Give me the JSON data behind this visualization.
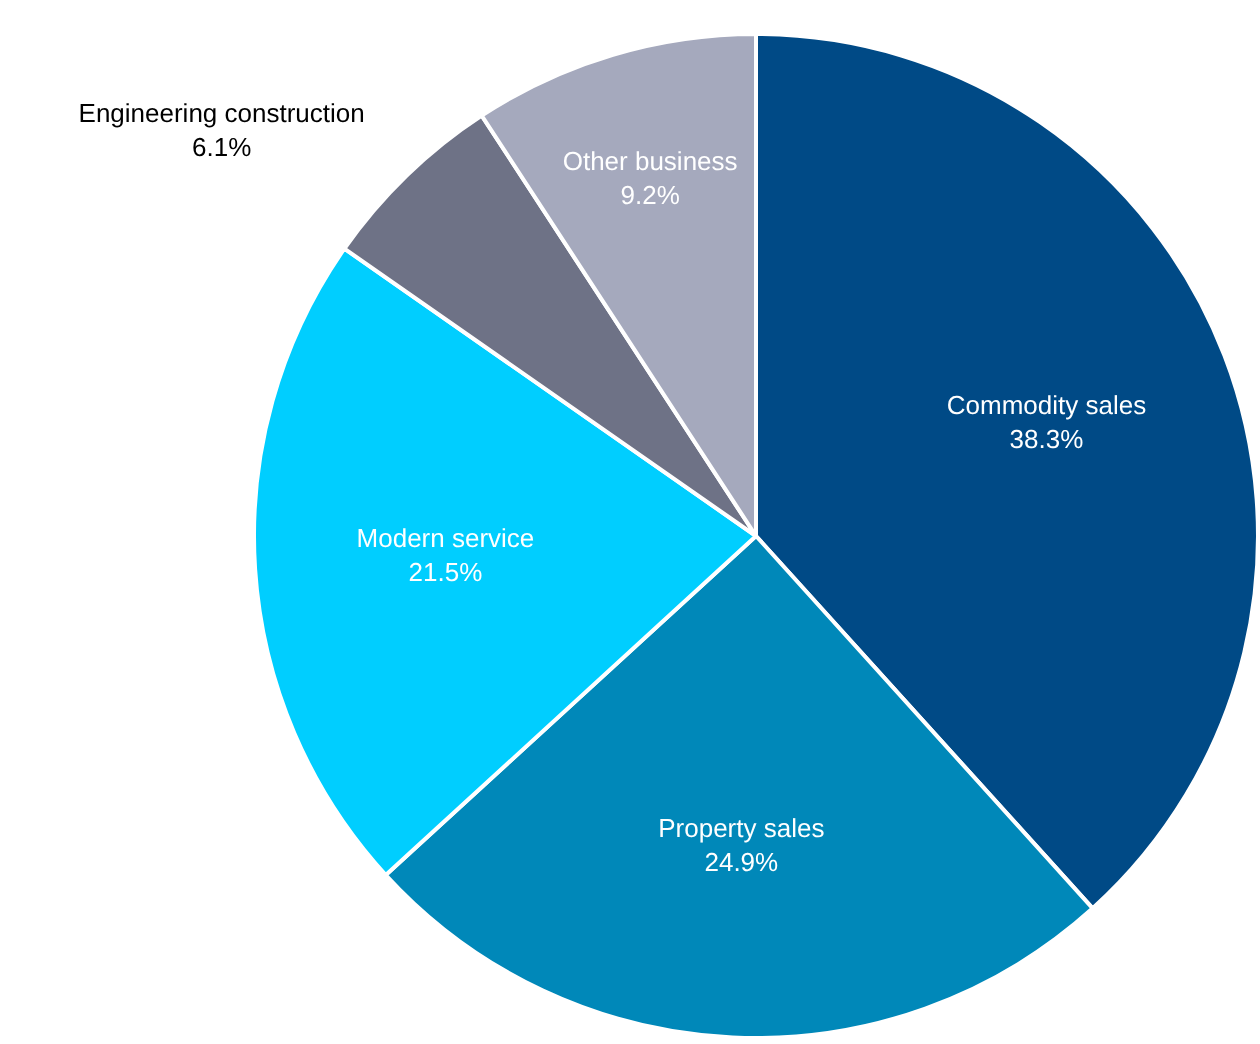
{
  "chart_data": {
    "type": "pie",
    "categories": [
      "Commodity sales",
      "Property sales",
      "Modern service",
      "Engineering construction",
      "Other business"
    ],
    "values": [
      38.3,
      24.9,
      21.5,
      6.1,
      9.2
    ],
    "colors": [
      "#004a86",
      "#0088b9",
      "#00ceff",
      "#6e7286",
      "#a5a9bd"
    ],
    "value_labels": [
      "38.3%",
      "24.9%",
      "21.5%",
      "6.1%",
      "9.2%"
    ],
    "legend": false
  }
}
